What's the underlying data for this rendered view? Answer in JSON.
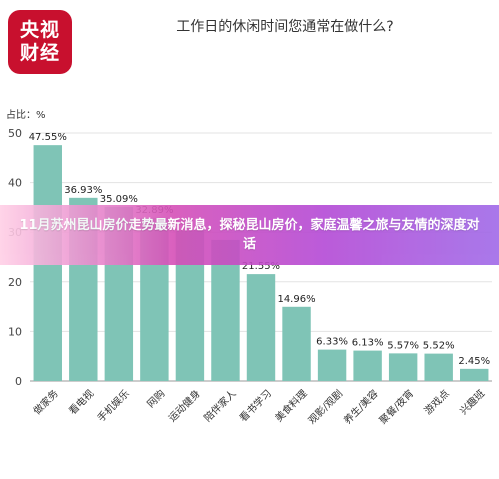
{
  "logo": {
    "line1": "央视",
    "line2": "财经"
  },
  "header": {
    "title": "工作日的休闲时间您通常在做什么?"
  },
  "banner": {
    "text": "11月苏州昆山房价走势最新消息，探秘昆山房价，家庭温馨之旅与友情的深度对话"
  },
  "colors": {
    "bar": "#7fc4b6",
    "brand": "#c8102e",
    "banner": "#d54fb8"
  },
  "chart_data": {
    "type": "bar",
    "ylabel": "占比：%",
    "ylim": [
      0,
      50
    ],
    "yticks": [
      0,
      10,
      20,
      30,
      40,
      50
    ],
    "grid": true,
    "categories": [
      "做家务",
      "看电视",
      "手机娱乐",
      "网购",
      "运动健身",
      "陪伴家人",
      "看书学习",
      "美食料理",
      "观影/观剧",
      "养生/美容",
      "聚餐/夜宵",
      "游戏点",
      "兴趣班"
    ],
    "values": [
      47.55,
      36.93,
      35.09,
      32.89,
      30.28,
      28.44,
      21.55,
      14.96,
      6.33,
      6.13,
      5.57,
      5.52,
      2.45
    ],
    "labels": [
      "47.55%",
      "36.93%",
      "35.09%",
      "32.89%",
      "",
      "",
      "21.55%",
      "14.96%",
      "6.33%",
      "6.13%",
      "5.57%",
      "5.52%",
      "2.45%"
    ]
  }
}
